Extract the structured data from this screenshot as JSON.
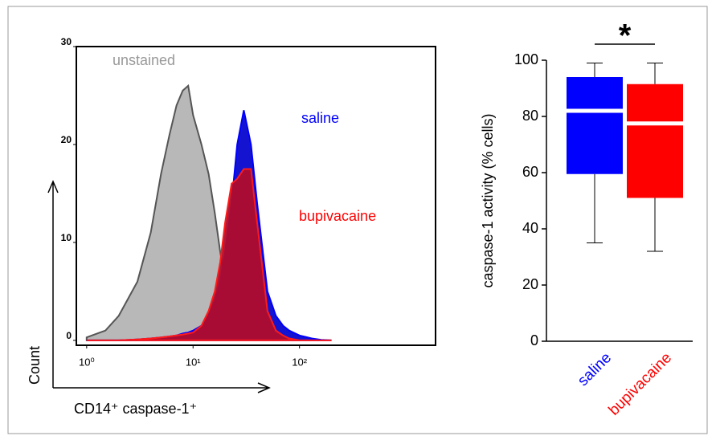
{
  "chart_data": [
    {
      "type": "area",
      "xscale": "log",
      "xlabel": "CD14⁺ caspase-1⁺",
      "ylabel": "Count",
      "x": [
        1,
        1.5,
        2,
        3,
        4,
        5,
        6,
        7,
        8,
        9,
        10,
        12,
        14,
        16,
        18,
        20,
        23,
        26,
        30,
        35,
        40,
        50,
        60,
        70,
        80,
        100,
        130,
        160,
        200
      ],
      "series": [
        {
          "name": "unstained",
          "color": "#999999",
          "values": [
            0.3,
            1,
            2.5,
            6,
            11,
            17,
            21,
            24,
            25.5,
            26,
            23,
            20,
            17,
            13,
            9,
            6,
            4,
            2.5,
            1.5,
            0.8,
            0.4,
            0.1,
            0,
            0,
            0,
            0,
            0,
            0,
            0
          ]
        },
        {
          "name": "saline",
          "color": "#0000ff",
          "values": [
            0,
            0,
            0,
            0.1,
            0.2,
            0.3,
            0.4,
            0.5,
            0.7,
            0.8,
            1,
            1.5,
            2.5,
            4,
            6,
            9,
            14,
            20,
            23.5,
            20,
            14,
            5,
            2.5,
            1.5,
            1,
            0.5,
            0.2,
            0.05,
            0
          ]
        },
        {
          "name": "bupivacaine",
          "color": "#ff0000",
          "values": [
            0,
            0,
            0,
            0.1,
            0.2,
            0.3,
            0.4,
            0.5,
            0.6,
            0.7,
            0.8,
            1.5,
            3,
            5,
            8,
            12,
            16,
            16.5,
            17.5,
            17.5,
            12,
            3,
            1,
            0.5,
            0.2,
            0,
            0,
            0,
            0
          ]
        }
      ],
      "xlim": [
        0.8,
        1900
      ],
      "xticks": [
        {
          "value": 1,
          "label": "10⁰"
        },
        {
          "value": 10,
          "label": "10¹"
        },
        {
          "value": 100,
          "label": "10²"
        }
      ],
      "ylim": [
        -0.5,
        30
      ],
      "yticks": [
        0,
        10,
        20,
        30
      ]
    },
    {
      "type": "box",
      "ylabel": "caspase-1 activity (% cells)",
      "annotation": "*",
      "boxes": [
        {
          "name": "saline",
          "color": "#0000ff",
          "min": 35,
          "q1": 59.5,
          "median": 82,
          "q3": 94,
          "max": 99
        },
        {
          "name": "bupivacaine",
          "color": "#ff0000",
          "min": 32,
          "q1": 51,
          "median": 77.5,
          "q3": 91.5,
          "max": 99
        }
      ],
      "ylim": [
        0,
        100
      ],
      "yticks": [
        0,
        20,
        40,
        60,
        80,
        100
      ]
    }
  ]
}
